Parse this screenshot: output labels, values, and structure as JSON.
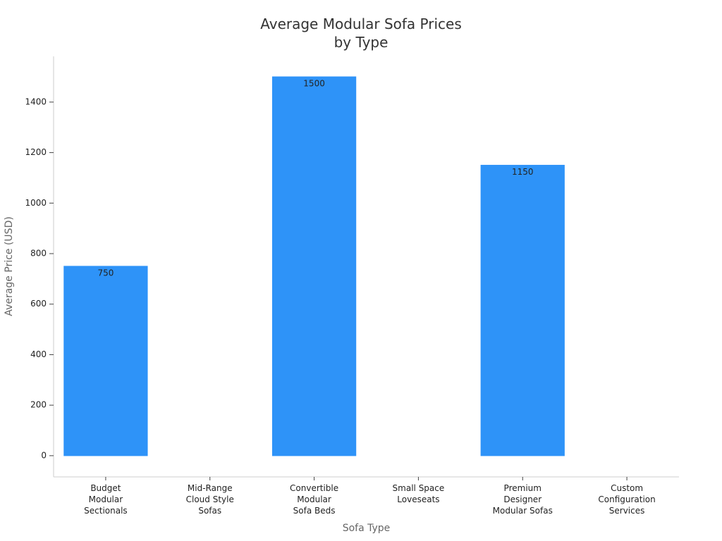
{
  "chart_data": {
    "type": "bar",
    "title": "Average Modular Sofa Prices\nby Type",
    "x_label": "Sofa Type",
    "y_label": "Average Price (USD)",
    "categories": [
      "Budget\nModular\nSectionals",
      "Mid-Range\nCloud Style\nSofas",
      "Convertible\nModular\nSofa Beds",
      "Small Space\nLoveseats",
      "Premium\nDesigner\nModular Sofas",
      "Custom\nConfiguration\nServices"
    ],
    "values": [
      750,
      0,
      1500,
      0,
      1150,
      0
    ],
    "value_labels": [
      "750",
      null,
      "1500",
      null,
      "1150",
      null
    ],
    "colors": [
      "#2e93f8",
      "#dcecfb",
      "#2e93f8",
      "#dcecfb",
      "#2e93f8",
      "#dcecfb"
    ],
    "ylim": [
      -84,
      1581
    ],
    "yticks": [
      0,
      200,
      400,
      600,
      800,
      1000,
      1200,
      1400
    ],
    "grid": false
  }
}
